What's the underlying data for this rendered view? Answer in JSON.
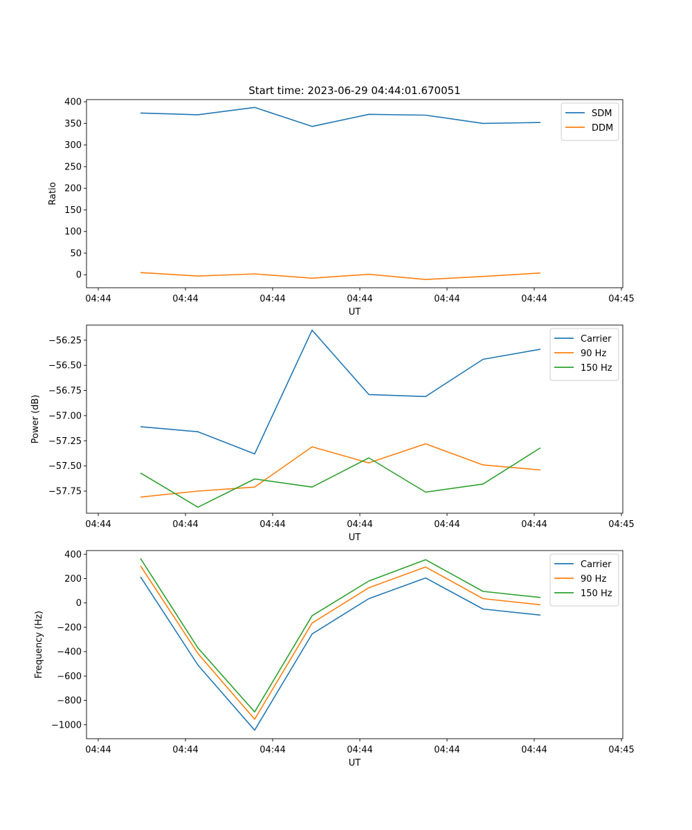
{
  "chart_data": [
    {
      "type": "line",
      "title": "Start time: 2023-06-29 04:44:01.670051",
      "xlabel": "UT",
      "ylabel": "Ratio",
      "x": [
        "04:44",
        "04:44",
        "04:44",
        "04:44",
        "04:44",
        "04:44",
        "04:44",
        "04:44"
      ],
      "x_ticks": [
        "04:44",
        "04:44",
        "04:44",
        "04:44",
        "04:44",
        "04:44",
        "04:45"
      ],
      "y_ticks": [
        "0",
        "50",
        "100",
        "150",
        "200",
        "250",
        "300",
        "350",
        "400"
      ],
      "ylim": [
        -30,
        405
      ],
      "legend_position": "upper right",
      "series": [
        {
          "name": "SDM",
          "color": "#1f77b4",
          "values": [
            374,
            370,
            387,
            343,
            371,
            369,
            350,
            352
          ]
        },
        {
          "name": "DDM",
          "color": "#ff7f0e",
          "values": [
            5,
            -3,
            2,
            -8,
            1,
            -11,
            -4,
            4
          ]
        }
      ]
    },
    {
      "type": "line",
      "title": "",
      "xlabel": "UT",
      "ylabel": "Power (dB)",
      "x": [
        "04:44",
        "04:44",
        "04:44",
        "04:44",
        "04:44",
        "04:44",
        "04:44",
        "04:44"
      ],
      "x_ticks": [
        "04:44",
        "04:44",
        "04:44",
        "04:44",
        "04:44",
        "04:44",
        "04:45"
      ],
      "y_ticks": [
        "−57.75",
        "−57.50",
        "−57.25",
        "−57.00",
        "−56.75",
        "−56.50",
        "−56.25"
      ],
      "ylim": [
        -57.97,
        -56.1
      ],
      "legend_position": "upper right",
      "series": [
        {
          "name": "Carrier",
          "color": "#1f77b4",
          "values": [
            -57.11,
            -57.16,
            -57.38,
            -56.15,
            -56.79,
            -56.81,
            -56.44,
            -56.34
          ]
        },
        {
          "name": "90 Hz",
          "color": "#ff7f0e",
          "values": [
            -57.81,
            -57.75,
            -57.71,
            -57.31,
            -57.47,
            -57.28,
            -57.49,
            -57.54
          ]
        },
        {
          "name": "150 Hz",
          "color": "#2ca02c",
          "values": [
            -57.57,
            -57.91,
            -57.63,
            -57.71,
            -57.42,
            -57.76,
            -57.68,
            -57.32
          ]
        }
      ]
    },
    {
      "type": "line",
      "title": "",
      "xlabel": "UT",
      "ylabel": "Frequency (Hz)",
      "x": [
        "04:44",
        "04:44",
        "04:44",
        "04:44",
        "04:44",
        "04:44",
        "04:44",
        "04:44"
      ],
      "x_ticks": [
        "04:44",
        "04:44",
        "04:44",
        "04:44",
        "04:44",
        "04:44",
        "04:45"
      ],
      "y_ticks": [
        "−1000",
        "−800",
        "−600",
        "−400",
        "−200",
        "0",
        "200",
        "400"
      ],
      "ylim": [
        -1115,
        430
      ],
      "legend_position": "upper right",
      "series": [
        {
          "name": "Carrier",
          "color": "#1f77b4",
          "values": [
            215,
            -510,
            -1045,
            -255,
            35,
            205,
            -50,
            -100
          ]
        },
        {
          "name": "90 Hz",
          "color": "#ff7f0e",
          "values": [
            305,
            -415,
            -955,
            -165,
            125,
            295,
            35,
            -15
          ]
        },
        {
          "name": "150 Hz",
          "color": "#2ca02c",
          "values": [
            365,
            -370,
            -895,
            -105,
            180,
            355,
            95,
            45
          ]
        }
      ]
    }
  ]
}
